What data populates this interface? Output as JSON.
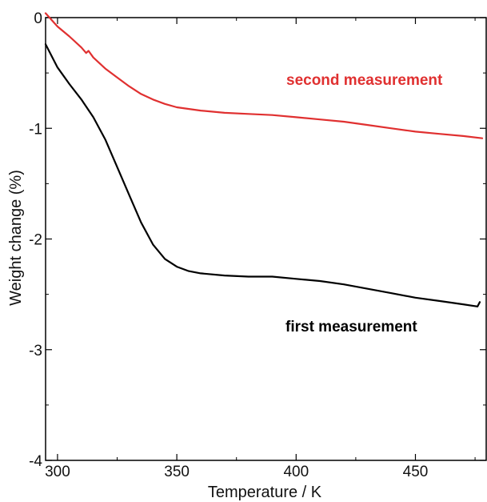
{
  "chart_data": {
    "type": "line",
    "xlabel": "Temperature / K",
    "ylabel": "Weight change (%)",
    "xlim": [
      295,
      480
    ],
    "ylim": [
      -4,
      0
    ],
    "x_ticks": [
      300,
      350,
      400,
      450
    ],
    "x_tick_labels": [
      "300",
      "350",
      "400",
      "450"
    ],
    "y_ticks": [
      0,
      -1,
      -2,
      -3,
      -4
    ],
    "y_tick_labels": [
      "0",
      "-1",
      "-2",
      "-3",
      "-4"
    ],
    "grid": false,
    "colors": {
      "first": "#000000",
      "second": "#e03030"
    },
    "series": [
      {
        "name": "second measurement",
        "color": "#e03030",
        "points": [
          [
            295,
            0.04
          ],
          [
            300,
            -0.08
          ],
          [
            305,
            -0.17
          ],
          [
            310,
            -0.27
          ],
          [
            312,
            -0.32
          ],
          [
            313,
            -0.3
          ],
          [
            315,
            -0.36
          ],
          [
            320,
            -0.46
          ],
          [
            325,
            -0.54
          ],
          [
            330,
            -0.62
          ],
          [
            335,
            -0.69
          ],
          [
            340,
            -0.74
          ],
          [
            345,
            -0.78
          ],
          [
            350,
            -0.81
          ],
          [
            360,
            -0.84
          ],
          [
            370,
            -0.86
          ],
          [
            380,
            -0.87
          ],
          [
            390,
            -0.88
          ],
          [
            400,
            -0.9
          ],
          [
            410,
            -0.92
          ],
          [
            420,
            -0.94
          ],
          [
            430,
            -0.97
          ],
          [
            440,
            -1.0
          ],
          [
            450,
            -1.03
          ],
          [
            460,
            -1.05
          ],
          [
            470,
            -1.07
          ],
          [
            478,
            -1.09
          ]
        ]
      },
      {
        "name": "first measurement",
        "color": "#000000",
        "points": [
          [
            295,
            -0.24
          ],
          [
            300,
            -0.45
          ],
          [
            305,
            -0.6
          ],
          [
            310,
            -0.74
          ],
          [
            315,
            -0.9
          ],
          [
            320,
            -1.1
          ],
          [
            325,
            -1.35
          ],
          [
            330,
            -1.6
          ],
          [
            335,
            -1.85
          ],
          [
            340,
            -2.05
          ],
          [
            345,
            -2.18
          ],
          [
            350,
            -2.25
          ],
          [
            355,
            -2.29
          ],
          [
            360,
            -2.31
          ],
          [
            370,
            -2.33
          ],
          [
            380,
            -2.34
          ],
          [
            390,
            -2.34
          ],
          [
            400,
            -2.36
          ],
          [
            410,
            -2.38
          ],
          [
            420,
            -2.41
          ],
          [
            430,
            -2.45
          ],
          [
            440,
            -2.49
          ],
          [
            450,
            -2.53
          ],
          [
            460,
            -2.56
          ],
          [
            470,
            -2.59
          ],
          [
            476,
            -2.61
          ],
          [
            477,
            -2.57
          ]
        ]
      }
    ],
    "annotations": [
      {
        "text": "second measurement",
        "color": "#e03030"
      },
      {
        "text": "first measurement",
        "color": "#000000"
      }
    ]
  }
}
